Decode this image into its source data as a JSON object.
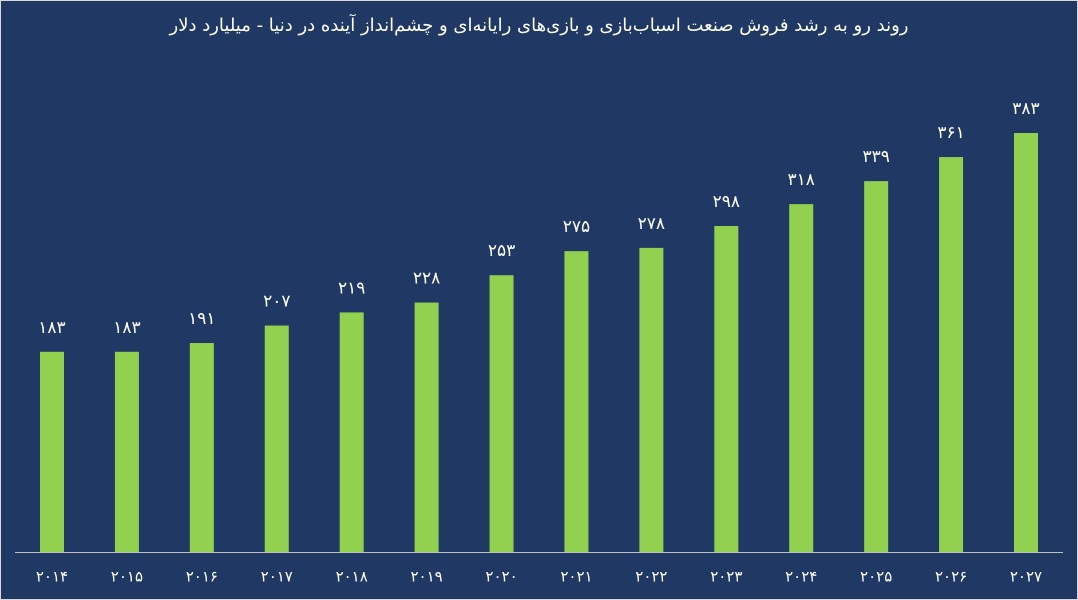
{
  "chart_data": {
    "type": "bar",
    "title": "روند رو به رشد فروش صنعت اسباب‌بازی و بازی‌های رایانه‌ای و چشم‌انداز آینده در دنیا - میلیارد دلار",
    "categories": [
      "۲۰۱۴",
      "۲۰۱۵",
      "۲۰۱۶",
      "۲۰۱۷",
      "۲۰۱۸",
      "۲۰۱۹",
      "۲۰۲۰",
      "۲۰۲۱",
      "۲۰۲۲",
      "۲۰۲۳",
      "۲۰۲۴",
      "۲۰۲۵",
      "۲۰۲۶",
      "۲۰۲۷"
    ],
    "values": [
      183,
      183,
      191,
      207,
      219,
      228,
      253,
      275,
      278,
      298,
      318,
      339,
      361,
      383
    ],
    "value_labels": [
      "۱۸۳",
      "۱۸۳",
      "۱۹۱",
      "۲۰۷",
      "۲۱۹",
      "۲۲۸",
      "۲۵۳",
      "۲۷۵",
      "۲۷۸",
      "۲۹۸",
      "۳۱۸",
      "۳۳۹",
      "۳۶۱",
      "۳۸۳"
    ],
    "color": "#92d050"
  }
}
